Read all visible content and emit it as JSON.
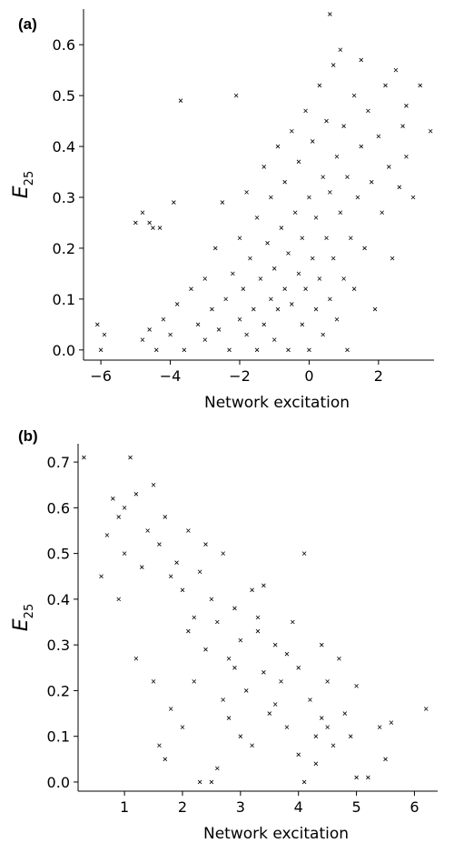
{
  "chart_data": [
    {
      "type": "scatter",
      "panel_label": "(a)",
      "xlabel": "Network excitation",
      "ylabel": "E",
      "ylabel_subscript": "25",
      "xlim": [
        -6.5,
        3.6
      ],
      "ylim": [
        -0.02,
        0.67
      ],
      "xticks": [
        -6,
        -4,
        -2,
        0,
        2
      ],
      "xtick_labels": [
        "−6",
        "−4",
        "−2",
        "0",
        "2"
      ],
      "yticks": [
        0.0,
        0.1,
        0.2,
        0.3,
        0.4,
        0.5,
        0.6
      ],
      "ytick_labels": [
        "0.0",
        "0.1",
        "0.2",
        "0.3",
        "0.4",
        "0.5",
        "0.6"
      ],
      "grid": false,
      "marker": "x",
      "trend": "positive",
      "points": [
        [
          -6.0,
          0.0
        ],
        [
          -6.1,
          0.05
        ],
        [
          -5.9,
          0.03
        ],
        [
          -5.0,
          0.25
        ],
        [
          -4.8,
          0.27
        ],
        [
          -4.6,
          0.25
        ],
        [
          -4.5,
          0.24
        ],
        [
          -4.3,
          0.24
        ],
        [
          -3.9,
          0.29
        ],
        [
          -3.7,
          0.49
        ],
        [
          -4.8,
          0.02
        ],
        [
          -4.6,
          0.04
        ],
        [
          -4.4,
          0.0
        ],
        [
          -4.2,
          0.06
        ],
        [
          -4.0,
          0.03
        ],
        [
          -3.8,
          0.09
        ],
        [
          -3.6,
          0.0
        ],
        [
          -3.4,
          0.12
        ],
        [
          -3.2,
          0.05
        ],
        [
          -3.0,
          0.14
        ],
        [
          -3.0,
          0.02
        ],
        [
          -2.8,
          0.08
        ],
        [
          -2.7,
          0.2
        ],
        [
          -2.6,
          0.04
        ],
        [
          -2.5,
          0.29
        ],
        [
          -2.4,
          0.1
        ],
        [
          -2.3,
          0.0
        ],
        [
          -2.2,
          0.15
        ],
        [
          -2.1,
          0.5
        ],
        [
          -2.0,
          0.06
        ],
        [
          -2.0,
          0.22
        ],
        [
          -1.9,
          0.12
        ],
        [
          -1.8,
          0.31
        ],
        [
          -1.8,
          0.03
        ],
        [
          -1.7,
          0.18
        ],
        [
          -1.6,
          0.08
        ],
        [
          -1.5,
          0.26
        ],
        [
          -1.5,
          0.0
        ],
        [
          -1.4,
          0.14
        ],
        [
          -1.3,
          0.36
        ],
        [
          -1.3,
          0.05
        ],
        [
          -1.2,
          0.21
        ],
        [
          -1.1,
          0.1
        ],
        [
          -1.1,
          0.3
        ],
        [
          -1.0,
          0.02
        ],
        [
          -1.0,
          0.16
        ],
        [
          -0.9,
          0.4
        ],
        [
          -0.9,
          0.08
        ],
        [
          -0.8,
          0.24
        ],
        [
          -0.7,
          0.12
        ],
        [
          -0.7,
          0.33
        ],
        [
          -0.6,
          0.0
        ],
        [
          -0.6,
          0.19
        ],
        [
          -0.5,
          0.43
        ],
        [
          -0.5,
          0.09
        ],
        [
          -0.4,
          0.27
        ],
        [
          -0.3,
          0.15
        ],
        [
          -0.3,
          0.37
        ],
        [
          -0.2,
          0.05
        ],
        [
          -0.2,
          0.22
        ],
        [
          -0.1,
          0.47
        ],
        [
          -0.1,
          0.12
        ],
        [
          0.0,
          0.3
        ],
        [
          0.0,
          0.0
        ],
        [
          0.1,
          0.18
        ],
        [
          0.1,
          0.41
        ],
        [
          0.2,
          0.08
        ],
        [
          0.2,
          0.26
        ],
        [
          0.3,
          0.52
        ],
        [
          0.3,
          0.14
        ],
        [
          0.4,
          0.34
        ],
        [
          0.4,
          0.03
        ],
        [
          0.5,
          0.22
        ],
        [
          0.5,
          0.45
        ],
        [
          0.6,
          0.1
        ],
        [
          0.6,
          0.31
        ],
        [
          0.6,
          0.66
        ],
        [
          0.7,
          0.56
        ],
        [
          0.7,
          0.18
        ],
        [
          0.8,
          0.38
        ],
        [
          0.8,
          0.06
        ],
        [
          0.9,
          0.27
        ],
        [
          0.9,
          0.59
        ],
        [
          1.0,
          0.14
        ],
        [
          1.0,
          0.44
        ],
        [
          1.1,
          0.34
        ],
        [
          1.1,
          0.0
        ],
        [
          1.2,
          0.22
        ],
        [
          1.3,
          0.5
        ],
        [
          1.3,
          0.12
        ],
        [
          1.4,
          0.3
        ],
        [
          1.5,
          0.57
        ],
        [
          1.5,
          0.4
        ],
        [
          1.6,
          0.2
        ],
        [
          1.7,
          0.47
        ],
        [
          1.8,
          0.33
        ],
        [
          1.9,
          0.08
        ],
        [
          2.0,
          0.42
        ],
        [
          2.1,
          0.27
        ],
        [
          2.2,
          0.52
        ],
        [
          2.3,
          0.36
        ],
        [
          2.4,
          0.18
        ],
        [
          2.5,
          0.55
        ],
        [
          2.6,
          0.32
        ],
        [
          2.7,
          0.44
        ],
        [
          2.8,
          0.48
        ],
        [
          2.8,
          0.38
        ],
        [
          3.0,
          0.3
        ],
        [
          3.2,
          0.52
        ],
        [
          3.5,
          0.43
        ]
      ]
    },
    {
      "type": "scatter",
      "panel_label": "(b)",
      "xlabel": "Network excitation",
      "ylabel": "E",
      "ylabel_subscript": "25",
      "xlim": [
        0.2,
        6.4
      ],
      "ylim": [
        -0.02,
        0.74
      ],
      "xticks": [
        1,
        2,
        3,
        4,
        5,
        6
      ],
      "xtick_labels": [
        "1",
        "2",
        "3",
        "4",
        "5",
        "6"
      ],
      "yticks": [
        0.0,
        0.1,
        0.2,
        0.3,
        0.4,
        0.5,
        0.6,
        0.7
      ],
      "ytick_labels": [
        "0.0",
        "0.1",
        "0.2",
        "0.3",
        "0.4",
        "0.5",
        "0.6",
        "0.7"
      ],
      "grid": false,
      "marker": "x",
      "trend": "negative",
      "points": [
        [
          0.3,
          0.71
        ],
        [
          1.1,
          0.71
        ],
        [
          0.7,
          0.54
        ],
        [
          0.8,
          0.62
        ],
        [
          0.9,
          0.58
        ],
        [
          1.0,
          0.6
        ],
        [
          1.2,
          0.63
        ],
        [
          1.0,
          0.5
        ],
        [
          0.6,
          0.45
        ],
        [
          0.9,
          0.4
        ],
        [
          1.4,
          0.55
        ],
        [
          1.5,
          0.65
        ],
        [
          1.3,
          0.47
        ],
        [
          1.6,
          0.52
        ],
        [
          1.7,
          0.58
        ],
        [
          1.2,
          0.27
        ],
        [
          1.5,
          0.22
        ],
        [
          1.6,
          0.08
        ],
        [
          1.7,
          0.05
        ],
        [
          1.8,
          0.16
        ],
        [
          1.9,
          0.48
        ],
        [
          2.0,
          0.42
        ],
        [
          2.1,
          0.55
        ],
        [
          2.2,
          0.36
        ],
        [
          2.3,
          0.46
        ],
        [
          2.4,
          0.29
        ],
        [
          2.5,
          0.4
        ],
        [
          2.2,
          0.22
        ],
        [
          2.0,
          0.12
        ],
        [
          2.3,
          0.0
        ],
        [
          2.5,
          0.0
        ],
        [
          2.6,
          0.35
        ],
        [
          2.7,
          0.5
        ],
        [
          2.8,
          0.27
        ],
        [
          2.9,
          0.38
        ],
        [
          3.0,
          0.31
        ],
        [
          3.1,
          0.2
        ],
        [
          3.2,
          0.42
        ],
        [
          3.3,
          0.33
        ],
        [
          3.4,
          0.24
        ],
        [
          2.6,
          0.03
        ],
        [
          2.8,
          0.14
        ],
        [
          3.0,
          0.1
        ],
        [
          3.2,
          0.08
        ],
        [
          3.4,
          0.43
        ],
        [
          3.5,
          0.15
        ],
        [
          3.6,
          0.3
        ],
        [
          3.7,
          0.22
        ],
        [
          3.8,
          0.12
        ],
        [
          3.9,
          0.35
        ],
        [
          4.0,
          0.25
        ],
        [
          4.1,
          0.5
        ],
        [
          4.2,
          0.18
        ],
        [
          4.3,
          0.1
        ],
        [
          4.4,
          0.3
        ],
        [
          4.5,
          0.22
        ],
        [
          4.6,
          0.08
        ],
        [
          4.7,
          0.27
        ],
        [
          4.8,
          0.15
        ],
        [
          5.0,
          0.21
        ],
        [
          4.1,
          0.0
        ],
        [
          4.3,
          0.04
        ],
        [
          4.5,
          0.12
        ],
        [
          4.9,
          0.1
        ],
        [
          5.0,
          0.01
        ],
        [
          5.2,
          0.01
        ],
        [
          5.4,
          0.12
        ],
        [
          5.5,
          0.05
        ],
        [
          5.6,
          0.13
        ],
        [
          6.2,
          0.16
        ],
        [
          1.8,
          0.45
        ],
        [
          2.1,
          0.33
        ],
        [
          2.4,
          0.52
        ],
        [
          2.7,
          0.18
        ],
        [
          2.9,
          0.25
        ],
        [
          3.3,
          0.36
        ],
        [
          3.6,
          0.17
        ],
        [
          3.8,
          0.28
        ],
        [
          4.0,
          0.06
        ],
        [
          4.4,
          0.14
        ]
      ]
    }
  ]
}
